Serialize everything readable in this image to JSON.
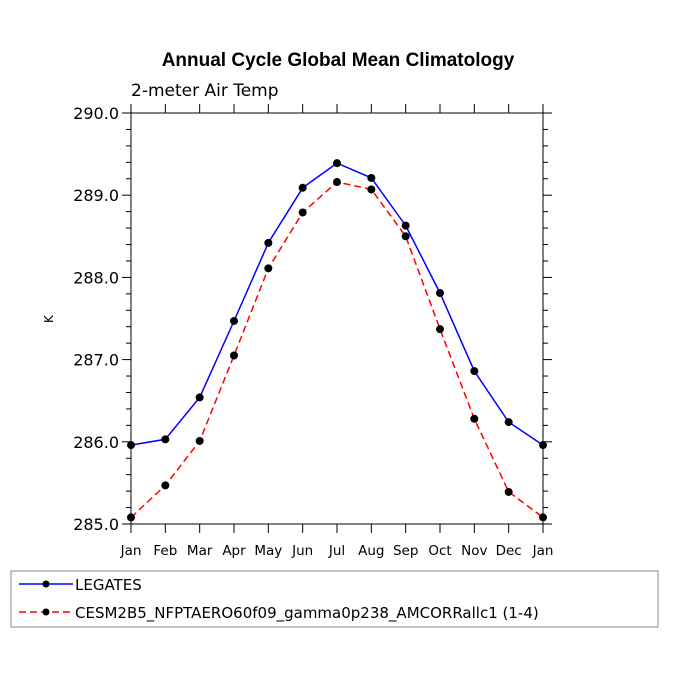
{
  "chart_data": {
    "type": "line",
    "title": "Annual Cycle Global Mean Climatology",
    "subtitle": "2-meter Air Temp",
    "xlabel": "",
    "ylabel": "K",
    "categories": [
      "Jan",
      "Feb",
      "Mar",
      "Apr",
      "May",
      "Jun",
      "Jul",
      "Aug",
      "Sep",
      "Oct",
      "Nov",
      "Dec",
      "Jan"
    ],
    "ylim": [
      285.0,
      290.0
    ],
    "yticks": [
      285.0,
      286.0,
      287.0,
      288.0,
      289.0,
      290.0
    ],
    "ytick_labels": [
      "285.0",
      "286.0",
      "287.0",
      "288.0",
      "289.0",
      "290.0"
    ],
    "grid": false,
    "legend_position": "bottom-left",
    "series": [
      {
        "name": "LEGATES",
        "color": "#0000ff",
        "style": "solid",
        "marker": "circle",
        "values": [
          285.96,
          286.03,
          286.54,
          287.47,
          288.42,
          289.09,
          289.39,
          289.21,
          288.63,
          287.81,
          286.86,
          286.24,
          285.96
        ]
      },
      {
        "name": "CESM2B5_NFPTAERO60f09_gamma0p238_AMCORRallc1 (1-4)",
        "color": "#ff0000",
        "style": "dashed",
        "marker": "circle",
        "values": [
          285.08,
          285.47,
          286.01,
          287.05,
          288.11,
          288.79,
          289.16,
          289.07,
          288.5,
          287.37,
          286.28,
          285.39,
          285.08
        ]
      }
    ]
  }
}
